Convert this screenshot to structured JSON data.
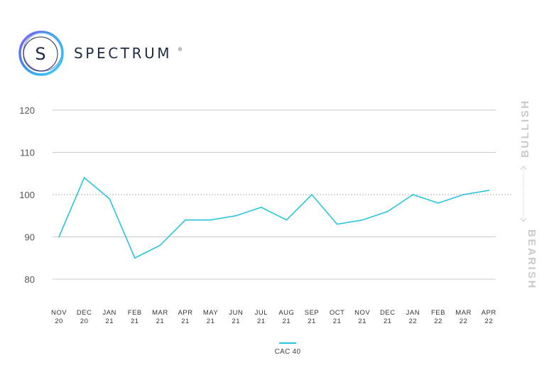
{
  "brand": {
    "name": "SPECTRUM",
    "registered_mark": "®",
    "logo_letter": "S"
  },
  "colors": {
    "series": "#29c4dc",
    "grid": "#c8c8c8",
    "reference_line": "#b5b5b5",
    "brand_text": "#1f2a44",
    "side_labels": "#c9c9c9"
  },
  "chart_data": {
    "type": "line",
    "title": "",
    "xlabel": "",
    "ylabel": "",
    "ylim": [
      80,
      120
    ],
    "yticks": [
      120,
      110,
      100,
      90,
      80
    ],
    "grid": true,
    "reference_value": 100,
    "categories": [
      [
        "NOV",
        "20"
      ],
      [
        "DEC",
        "20"
      ],
      [
        "JAN",
        "21"
      ],
      [
        "FEB",
        "21"
      ],
      [
        "MAR",
        "21"
      ],
      [
        "APR",
        "21"
      ],
      [
        "MAY",
        "21"
      ],
      [
        "JUN",
        "21"
      ],
      [
        "JUL",
        "21"
      ],
      [
        "AUG",
        "21"
      ],
      [
        "SEP",
        "21"
      ],
      [
        "OCT",
        "21"
      ],
      [
        "NOV",
        "21"
      ],
      [
        "DEC",
        "21"
      ],
      [
        "JAN",
        "22"
      ],
      [
        "FEB",
        "22"
      ],
      [
        "MAR",
        "22"
      ],
      [
        "APR",
        "22"
      ]
    ],
    "series": [
      {
        "name": "CAC 40",
        "color": "#29c4dc",
        "values": [
          90,
          104,
          99,
          85,
          88,
          94,
          94,
          95,
          97,
          94,
          100,
          93,
          94,
          96,
          100,
          98,
          100,
          101
        ]
      }
    ],
    "side_labels": {
      "upper": "BULLISH",
      "lower": "BEARISH"
    },
    "legend_position": "bottom-center"
  }
}
